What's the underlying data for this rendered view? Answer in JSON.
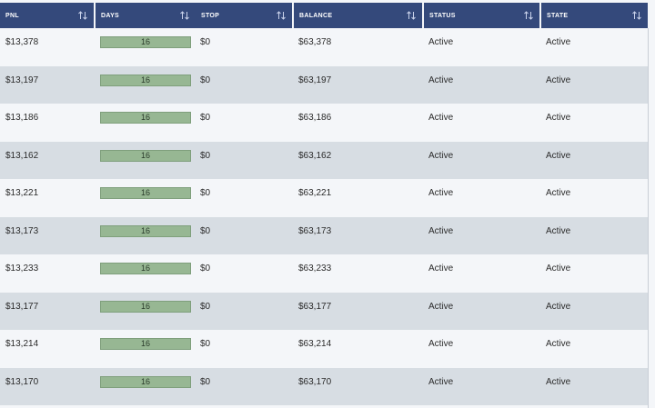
{
  "columns": [
    "PNL",
    "DAYS",
    "STOP",
    "BALANCE",
    "STATUS",
    "STATE"
  ],
  "colors": {
    "header_bg": "#34497b",
    "row_light": "#f4f6f9",
    "row_dark": "#d7dde3",
    "days_bar": "#97b793"
  },
  "rows": [
    {
      "pnl": "$13,378",
      "days": "16",
      "stop": "$0",
      "balance": "$63,378",
      "status": "Active",
      "state": "Active"
    },
    {
      "pnl": "$13,197",
      "days": "16",
      "stop": "$0",
      "balance": "$63,197",
      "status": "Active",
      "state": "Active"
    },
    {
      "pnl": "$13,186",
      "days": "16",
      "stop": "$0",
      "balance": "$63,186",
      "status": "Active",
      "state": "Active"
    },
    {
      "pnl": "$13,162",
      "days": "16",
      "stop": "$0",
      "balance": "$63,162",
      "status": "Active",
      "state": "Active"
    },
    {
      "pnl": "$13,221",
      "days": "16",
      "stop": "$0",
      "balance": "$63,221",
      "status": "Active",
      "state": "Active"
    },
    {
      "pnl": "$13,173",
      "days": "16",
      "stop": "$0",
      "balance": "$63,173",
      "status": "Active",
      "state": "Active"
    },
    {
      "pnl": "$13,233",
      "days": "16",
      "stop": "$0",
      "balance": "$63,233",
      "status": "Active",
      "state": "Active"
    },
    {
      "pnl": "$13,177",
      "days": "16",
      "stop": "$0",
      "balance": "$63,177",
      "status": "Active",
      "state": "Active"
    },
    {
      "pnl": "$13,214",
      "days": "16",
      "stop": "$0",
      "balance": "$63,214",
      "status": "Active",
      "state": "Active"
    },
    {
      "pnl": "$13,170",
      "days": "16",
      "stop": "$0",
      "balance": "$63,170",
      "status": "Active",
      "state": "Active"
    }
  ]
}
